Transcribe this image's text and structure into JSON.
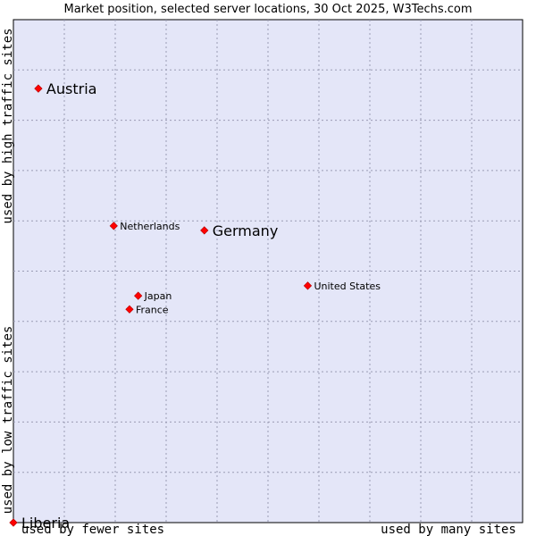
{
  "chart_data": {
    "type": "scatter",
    "title": "Market position, selected server locations, 30 Oct 2025, W3Techs.com",
    "xlabel_low": "used by fewer sites",
    "xlabel_high": "used by many sites",
    "ylabel_low": "used by low traffic sites",
    "ylabel_high": "used by high traffic sites",
    "xlim": [
      0,
      100
    ],
    "ylim": [
      0,
      100
    ],
    "grid": true,
    "background_color": "#e4e6f8",
    "grid_color": "#9a9cb4",
    "point_color": "#ff0000",
    "points": [
      {
        "label": "Austria",
        "x": 4.9,
        "y": 86.3,
        "emphasis": "large"
      },
      {
        "label": "Netherlands",
        "x": 19.7,
        "y": 59.0,
        "emphasis": "small"
      },
      {
        "label": "Germany",
        "x": 37.5,
        "y": 58.1,
        "emphasis": "large"
      },
      {
        "label": "United States",
        "x": 57.8,
        "y": 47.1,
        "emphasis": "small"
      },
      {
        "label": "Japan",
        "x": 24.5,
        "y": 45.1,
        "emphasis": "small"
      },
      {
        "label": "France",
        "x": 22.8,
        "y": 42.4,
        "emphasis": "small"
      },
      {
        "label": "Liberia",
        "x": 0.0,
        "y": 0.0,
        "emphasis": "large"
      }
    ]
  }
}
